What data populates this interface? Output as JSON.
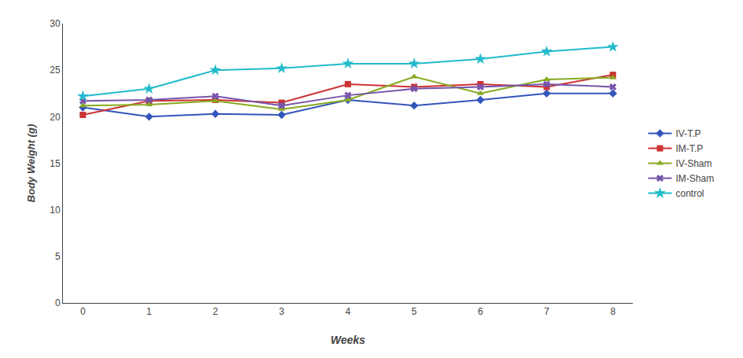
{
  "chart_data": {
    "type": "line",
    "x": [
      0,
      1,
      2,
      3,
      4,
      5,
      6,
      7,
      8
    ],
    "xlabel": "Weeks",
    "ylabel": "Body Weight (g)",
    "xlim": [
      -0.3,
      8.3
    ],
    "xticks": [
      0,
      1,
      2,
      3,
      4,
      5,
      6,
      7,
      8
    ],
    "ylim": [
      0,
      30
    ],
    "yticks": [
      0,
      5,
      10,
      15,
      20,
      25,
      30
    ],
    "grid": false,
    "legend": "right",
    "series": [
      {
        "name": "IV-T.P",
        "color": "#3355BB",
        "marker": "diamond",
        "values": [
          21.0,
          20.0,
          20.3,
          20.2,
          21.8,
          21.2,
          21.8,
          22.5,
          22.5
        ]
      },
      {
        "name": "IM-T.P",
        "color": "#CC3333",
        "marker": "square",
        "values": [
          20.2,
          21.7,
          21.8,
          21.5,
          23.5,
          23.2,
          23.5,
          23.2,
          24.5
        ]
      },
      {
        "name": "IV-Sham",
        "color": "#88AA22",
        "marker": "triangle-up",
        "values": [
          21.2,
          21.3,
          21.7,
          20.8,
          21.8,
          24.3,
          22.5,
          24.0,
          24.2
        ]
      },
      {
        "name": "IM-Sham",
        "color": "#7755AA",
        "marker": "x",
        "values": [
          21.7,
          21.8,
          22.2,
          21.2,
          22.3,
          23.0,
          23.2,
          23.5,
          23.2
        ]
      },
      {
        "name": "control",
        "color": "#22BBCC",
        "marker": "star",
        "values": [
          22.2,
          23.0,
          25.0,
          25.2,
          25.7,
          25.7,
          26.2,
          27.0,
          27.5
        ]
      }
    ]
  }
}
